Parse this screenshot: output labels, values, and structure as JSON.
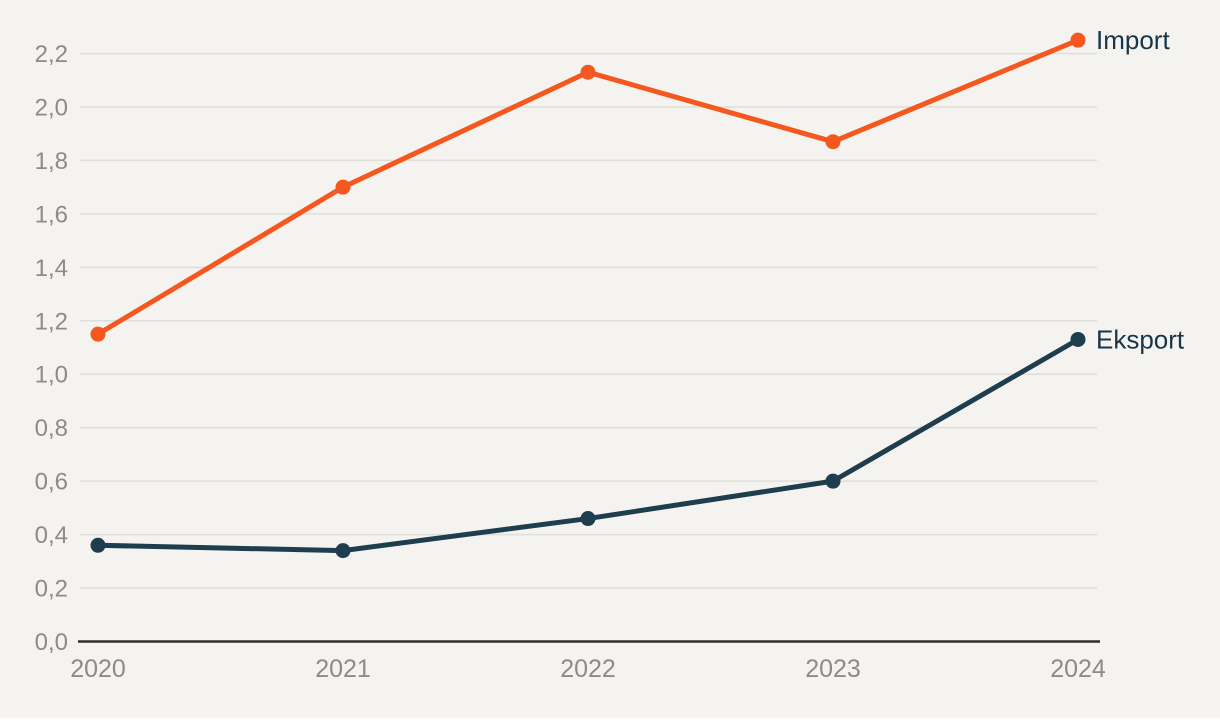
{
  "chart_data": {
    "type": "line",
    "title": "",
    "xlabel": "",
    "ylabel": "",
    "categories": [
      "2020",
      "2021",
      "2022",
      "2023",
      "2024"
    ],
    "series": [
      {
        "name": "Import",
        "color": "#f4581e",
        "values": [
          1.15,
          1.7,
          2.13,
          1.87,
          2.25
        ]
      },
      {
        "name": "Eksport",
        "color": "#1e3d4f",
        "values": [
          0.36,
          0.34,
          0.46,
          0.6,
          1.13
        ]
      }
    ],
    "y_ticks": {
      "values": [
        0.0,
        0.2,
        0.4,
        0.6,
        0.8,
        1.0,
        1.2,
        1.4,
        1.6,
        1.8,
        2.0,
        2.2
      ],
      "labels": [
        "0,0",
        "0,2",
        "0,4",
        "0,6",
        "0,8",
        "1,0",
        "1,2",
        "1,4",
        "1,6",
        "1,8",
        "2,0",
        "2,2"
      ]
    },
    "ylim": [
      0,
      2.25
    ],
    "grid": true,
    "legend_position": "direct-labels-right-of-last-point",
    "decimal_separator": ","
  },
  "colors": {
    "background": "#f5f3ef",
    "gridline": "#e0ded9",
    "axis_line": "#2f2e2c",
    "tick_text": "#8d8b88",
    "series_label_text": "#17364a",
    "import_line": "#f4581e",
    "eksport_line": "#1e3d4f"
  }
}
